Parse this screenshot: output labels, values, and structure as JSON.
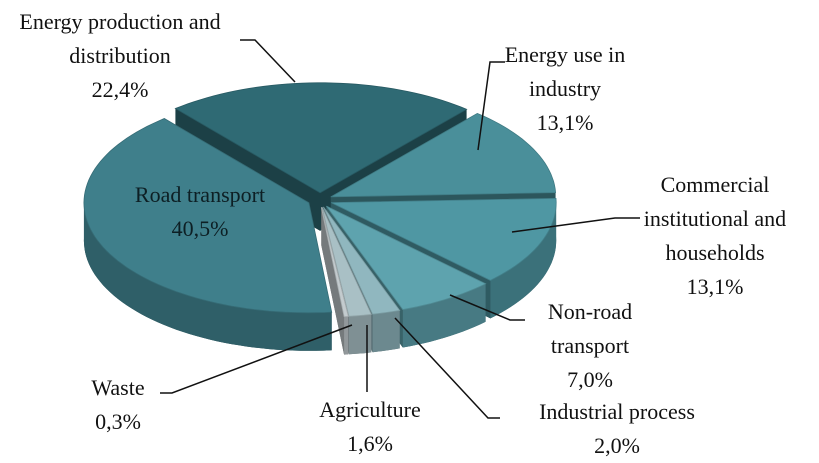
{
  "chart_data": {
    "type": "pie3d",
    "categories": [
      "Energy production and distribution",
      "Energy use in industry",
      "Commercial institutional and households",
      "Non-road transport",
      "Industrial process",
      "Agriculture",
      "Waste",
      "Road transport"
    ],
    "values": [
      22.4,
      13.1,
      13.1,
      7.0,
      2.0,
      1.6,
      0.3,
      40.5
    ],
    "value_labels": [
      "22,4%",
      "13,1%",
      "13,1%",
      "7,0%",
      "2,0%",
      "1,6%",
      "0,3%",
      "40,5%"
    ],
    "colors": [
      "#2f6a74",
      "#4a8f9a",
      "#4f97a3",
      "#5ea3ae",
      "#90b7bf",
      "#a9c0c5",
      "#c3cbce",
      "#3f7f8b"
    ]
  }
}
